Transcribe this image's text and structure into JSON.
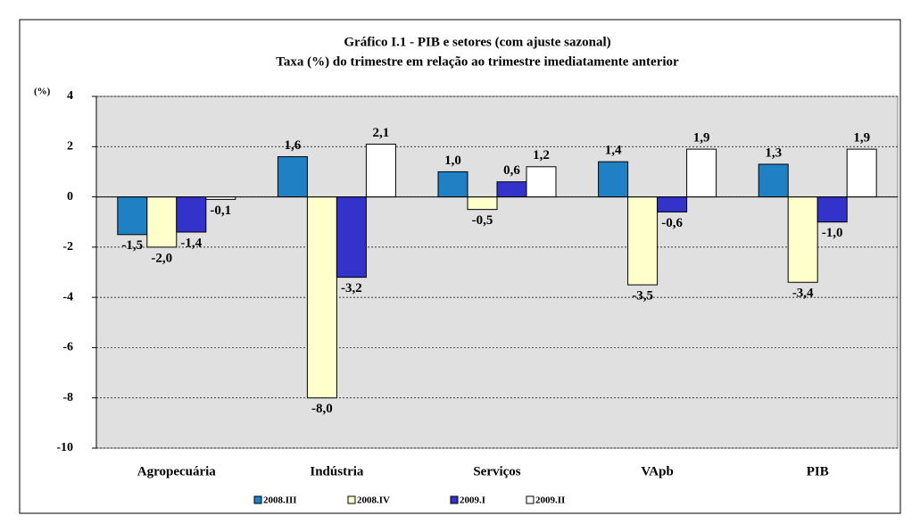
{
  "chart_data": {
    "type": "bar",
    "title": "Gráfico I.1 - PIB  e setores (com ajuste sazonal)",
    "subtitle": "Taxa (%) do trimestre em relação ao trimestre imediatamente anterior",
    "y_axis_label": "(%)",
    "categories": [
      "Agropecuária",
      "Indústria",
      "Serviços",
      "VApb",
      "PIB"
    ],
    "series": [
      {
        "name": "2008.III",
        "color": "#1f80c4",
        "values": [
          -1.5,
          1.6,
          1.0,
          1.4,
          1.3
        ],
        "value_labels": [
          "-1,5",
          "1,6",
          "1,0",
          "1,4",
          "1,3"
        ]
      },
      {
        "name": "2008.IV",
        "color": "#ffffcc",
        "values": [
          -2.0,
          -8.0,
          -0.5,
          -3.5,
          -3.4
        ],
        "value_labels": [
          "-2,0",
          "-8,0",
          "-0,5",
          "-3,5",
          "-3,4"
        ]
      },
      {
        "name": "2009.I",
        "color": "#3333cc",
        "values": [
          -1.4,
          -3.2,
          0.6,
          -0.6,
          -1.0
        ],
        "value_labels": [
          "-1,4",
          "-3,2",
          "0,6",
          "-0,6",
          "-1,0"
        ]
      },
      {
        "name": "2009.II",
        "color": "#ffffff",
        "values": [
          -0.1,
          2.1,
          1.2,
          1.9,
          1.9
        ],
        "value_labels": [
          "-0,1",
          "2,1",
          "1,2",
          "1,9",
          "1,9"
        ]
      }
    ],
    "ylim": [
      -10,
      4
    ],
    "yticks": [
      -10,
      -8,
      -6,
      -4,
      -2,
      0,
      2,
      4
    ],
    "grid": true,
    "legend": "bottom",
    "plot_background": "#e0e0e0"
  }
}
